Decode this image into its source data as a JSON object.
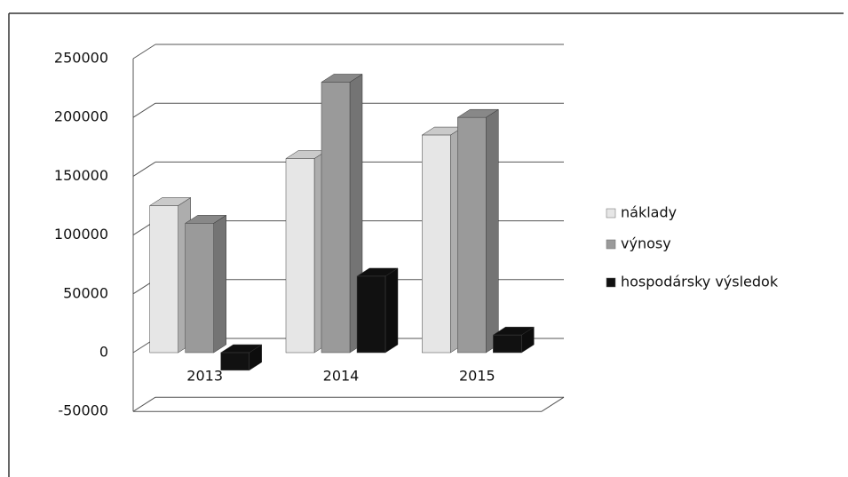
{
  "chart_data": {
    "type": "bar3d",
    "categories": [
      "2013",
      "2014",
      "2015"
    ],
    "series": [
      {
        "name": "náklady",
        "color": "#e6e6e6",
        "values": [
          125000,
          165000,
          185000
        ]
      },
      {
        "name": "výnosy",
        "color": "#9a9a9a",
        "values": [
          110000,
          230000,
          200000
        ]
      },
      {
        "name": "hospodársky výsledok",
        "color": "#111111",
        "values": [
          -15000,
          65000,
          15000
        ]
      }
    ],
    "ylim": [
      -50000,
      250000
    ],
    "yticks": [
      -50000,
      0,
      50000,
      100000,
      150000,
      200000,
      250000
    ],
    "grid": true,
    "legend": "right"
  }
}
